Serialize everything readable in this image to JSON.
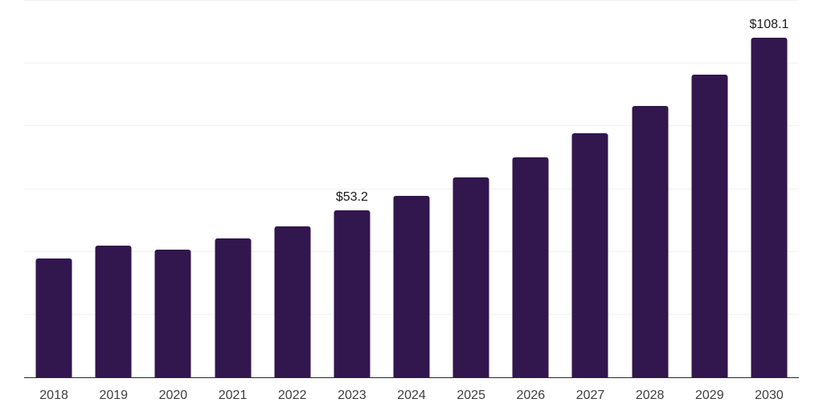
{
  "chart_data": {
    "type": "bar",
    "title": "",
    "xlabel": "",
    "ylabel": "",
    "categories": [
      "2018",
      "2019",
      "2020",
      "2021",
      "2022",
      "2023",
      "2024",
      "2025",
      "2026",
      "2027",
      "2028",
      "2029",
      "2030"
    ],
    "values": [
      37.7,
      41.9,
      40.5,
      44.1,
      48.1,
      53.2,
      57.7,
      63.5,
      69.9,
      77.6,
      86.3,
      96.3,
      108.1
    ],
    "data_labels": [
      "",
      "",
      "",
      "",
      "",
      "$53.2",
      "",
      "",
      "",
      "",
      "",
      "",
      "$108.1"
    ],
    "ylim": [
      0,
      120
    ],
    "gridline_values": [
      0,
      20,
      40,
      60,
      80,
      100,
      120
    ],
    "grid": "on",
    "legend": "none",
    "colors": {
      "bar": "#32164e",
      "gridline": "#f1f1f1",
      "axis_line": "#262626",
      "tick_label": "#3d3d3d",
      "data_label": "#1a1a1a",
      "background": "#ffffff"
    }
  }
}
